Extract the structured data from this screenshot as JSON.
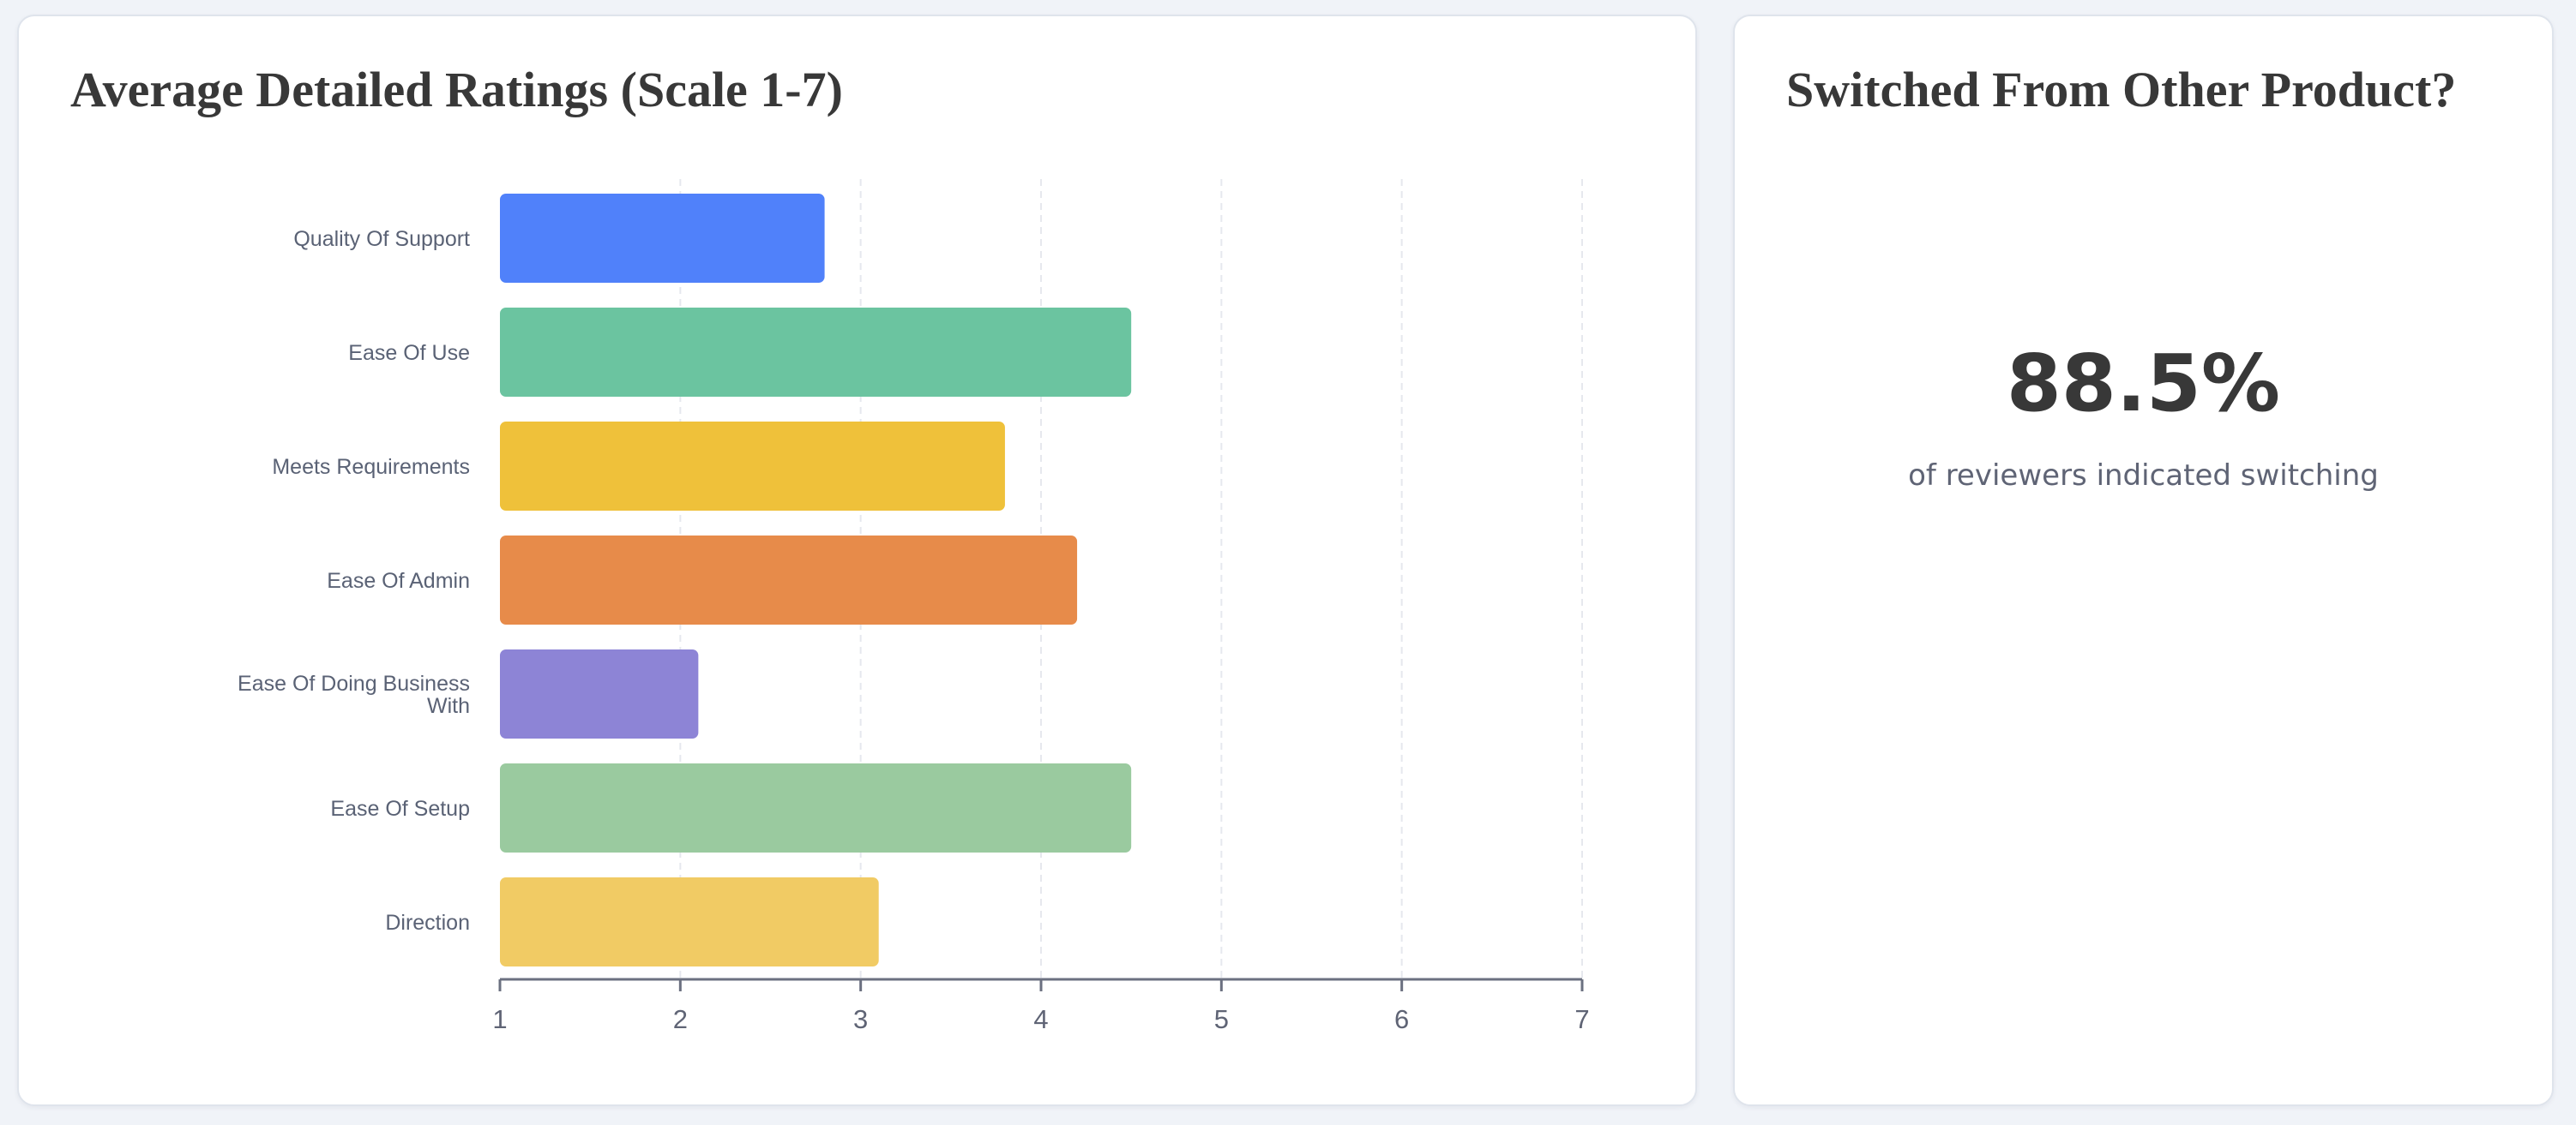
{
  "ratings_card": {
    "title": "Average Detailed Ratings (Scale 1-7)"
  },
  "switch_card": {
    "title": "Switched From Other Product?",
    "value": "88.5%",
    "caption": "of reviewers indicated switching"
  },
  "chart_data": {
    "type": "bar",
    "orientation": "horizontal",
    "title": "Average Detailed Ratings (Scale 1-7)",
    "categories": [
      [
        "Quality Of Support"
      ],
      [
        "Ease Of Use"
      ],
      [
        "Meets Requirements"
      ],
      [
        "Ease Of Admin"
      ],
      [
        "Ease Of Doing Business",
        "With"
      ],
      [
        "Ease Of Setup"
      ],
      [
        "Direction"
      ]
    ],
    "values": [
      2.8,
      4.5,
      3.8,
      4.2,
      2.1,
      4.5,
      3.1
    ],
    "colors": [
      "#5081fa",
      "#6bc4a0",
      "#efc13a",
      "#e78b4a",
      "#8d84d6",
      "#9aca9f",
      "#f1cb64"
    ],
    "xlim": [
      1,
      7
    ],
    "xticks": [
      1,
      2,
      3,
      4,
      5,
      6,
      7
    ],
    "grid": "vertical-dashed",
    "legend": "none"
  }
}
